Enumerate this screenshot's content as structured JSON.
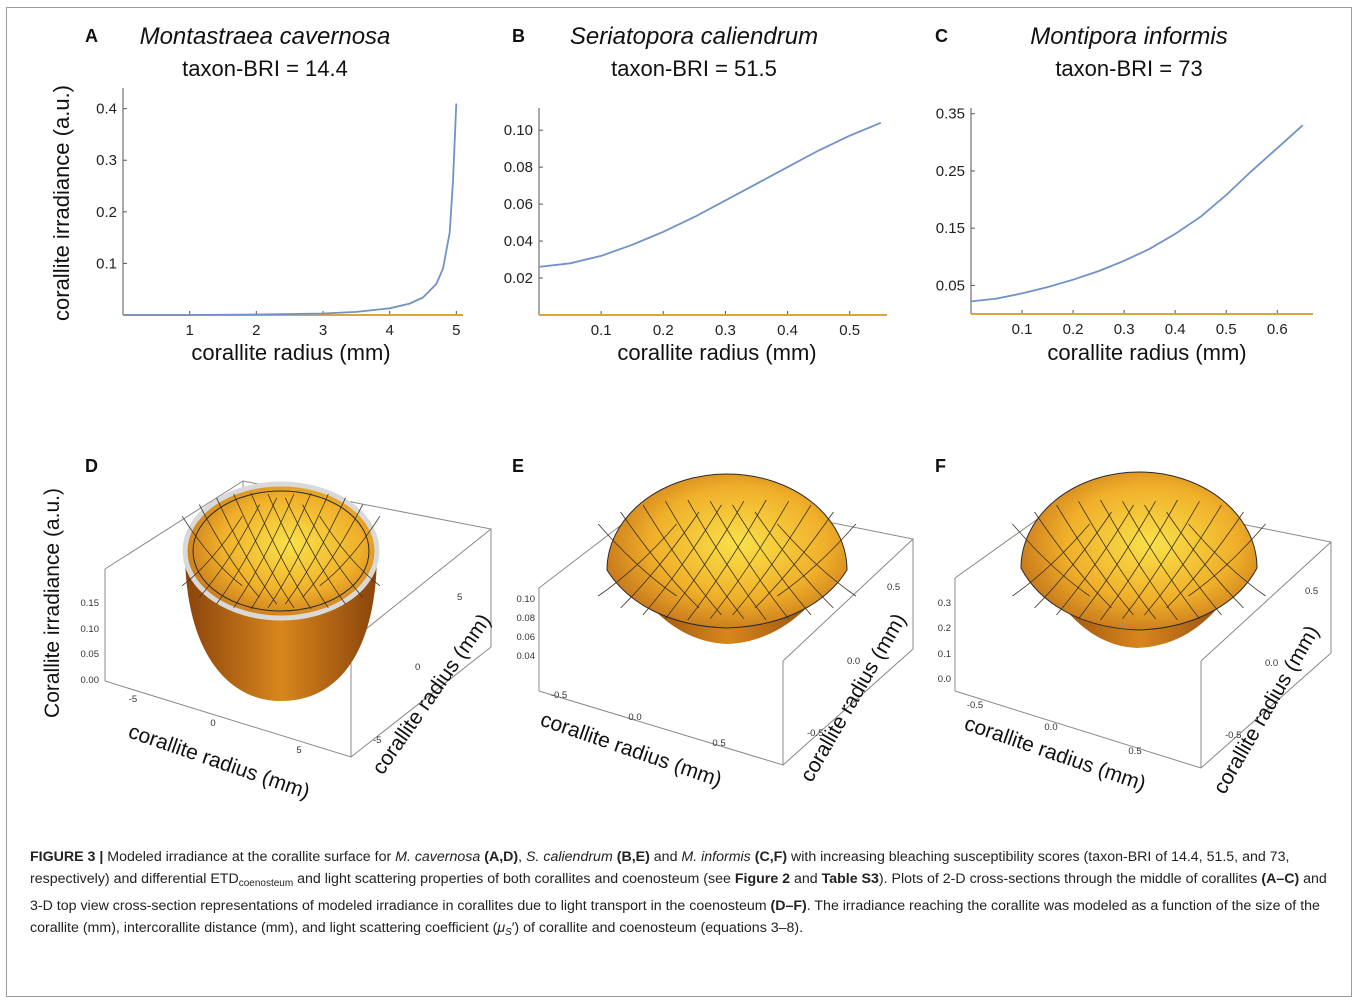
{
  "figure": {
    "panels_2d": [
      {
        "letter": "A",
        "title_species": "Montastraea cavernosa",
        "title_bri": "taxon-BRI = 14.4",
        "xlabel": "corallite radius (mm)",
        "ylabel": "corallite irradiance (a.u.)",
        "xticks": [
          "1",
          "2",
          "3",
          "4",
          "5"
        ],
        "yticks": [
          "0.1",
          "0.2",
          "0.3",
          "0.4"
        ]
      },
      {
        "letter": "B",
        "title_species": "Seriatopora caliendrum",
        "title_bri": "taxon-BRI = 51.5",
        "xlabel": "corallite radius (mm)",
        "xticks": [
          "0.1",
          "0.2",
          "0.3",
          "0.4",
          "0.5"
        ],
        "yticks": [
          "0.02",
          "0.04",
          "0.06",
          "0.08",
          "0.10"
        ]
      },
      {
        "letter": "C",
        "title_species": "Montipora informis",
        "title_bri": "taxon-BRI = 73",
        "xlabel": "corallite radius (mm)",
        "xticks": [
          "0.1",
          "0.2",
          "0.3",
          "0.4",
          "0.5",
          "0.6"
        ],
        "yticks": [
          "0.05",
          "0.15",
          "0.25",
          "0.35"
        ]
      }
    ],
    "panels_3d": [
      {
        "letter": "D",
        "zlabel": "Corallite irradiance (a.u.)",
        "xlabel": "corallite radius (mm)",
        "ylabel": "corallite radius (mm)",
        "zticks": [
          "0.15",
          "0.10",
          "0.05",
          "0.00"
        ],
        "xticks": [
          "-5",
          "0",
          "5"
        ],
        "yticks": [
          "5",
          "0",
          "-5"
        ]
      },
      {
        "letter": "E",
        "xlabel": "corallite radius (mm)",
        "ylabel": "corallite radius (mm)",
        "zticks": [
          "0.10",
          "0.08",
          "0.06",
          "0.04"
        ],
        "xticks": [
          "-0.5",
          "0.0",
          "0.5"
        ],
        "yticks": [
          "0.5",
          "0.0",
          "-0.5"
        ]
      },
      {
        "letter": "F",
        "xlabel": "corallite radius (mm)",
        "ylabel": "corallite radius (mm)",
        "zticks": [
          "0.3",
          "0.2",
          "0.1",
          "0.0"
        ],
        "xticks": [
          "-0.5",
          "0.0",
          "0.5"
        ],
        "yticks": [
          "0.5",
          "0.0",
          "-0.5"
        ]
      }
    ],
    "colors": {
      "curve": "#6f92c9",
      "baseline": "#d9a441",
      "surface_light": "#f6d23a",
      "surface_dark": "#b8620f",
      "mesh": "#3a3020"
    }
  },
  "chart_data": [
    {
      "type": "line",
      "title": "Montastraea cavernosa taxon-BRI = 14.4",
      "xlabel": "corallite radius (mm)",
      "ylabel": "corallite irradiance (a.u.)",
      "xlim": [
        0,
        5.1
      ],
      "ylim": [
        0,
        0.44
      ],
      "series": [
        {
          "x": [
            0,
            1,
            2,
            3,
            3.5,
            4,
            4.3,
            4.5,
            4.7,
            4.8,
            4.9,
            4.95,
            5.0
          ],
          "values": [
            0.0,
            0.0,
            0.001,
            0.003,
            0.006,
            0.013,
            0.022,
            0.034,
            0.06,
            0.09,
            0.16,
            0.26,
            0.41
          ]
        }
      ]
    },
    {
      "type": "line",
      "title": "Seriatopora caliendrum taxon-BRI = 51.5",
      "xlabel": "corallite radius (mm)",
      "xlim": [
        0,
        0.56
      ],
      "ylim": [
        0,
        0.112
      ],
      "series": [
        {
          "x": [
            0,
            0.05,
            0.1,
            0.15,
            0.2,
            0.25,
            0.3,
            0.35,
            0.4,
            0.45,
            0.5,
            0.55
          ],
          "values": [
            0.026,
            0.028,
            0.032,
            0.038,
            0.045,
            0.053,
            0.062,
            0.071,
            0.08,
            0.089,
            0.097,
            0.104
          ]
        }
      ]
    },
    {
      "type": "line",
      "title": "Montipora informis taxon-BRI = 73",
      "xlabel": "corallite radius (mm)",
      "xlim": [
        0,
        0.67
      ],
      "ylim": [
        0,
        0.36
      ],
      "series": [
        {
          "x": [
            0,
            0.05,
            0.1,
            0.15,
            0.2,
            0.25,
            0.3,
            0.35,
            0.4,
            0.45,
            0.5,
            0.55,
            0.6,
            0.65
          ],
          "values": [
            0.022,
            0.027,
            0.036,
            0.047,
            0.06,
            0.075,
            0.093,
            0.114,
            0.14,
            0.17,
            0.208,
            0.25,
            0.29,
            0.33
          ]
        }
      ]
    }
  ],
  "caption": {
    "label": "FIGURE 3 |",
    "t1": " Modeled irradiance at the corallite surface for ",
    "sp1": "M. cavernosa",
    "r1": "(A,D)",
    "sp2": "S. caliendrum",
    "r2": "(B,E)",
    "t2": " and ",
    "sp3": "M. informis",
    "r3": "(C,F)",
    "t3": " with increasing bleaching susceptibility scores (taxon-BRI of 14.4, 51.5, and 73, respectively) and differential ETD",
    "sub1": "coenosteum",
    "t4": " and light scattering properties of both corallites and coenosteum (see ",
    "ref1": "Figure 2",
    "t5": " and ",
    "ref2": "Table S3",
    "t6": "). Plots of 2-D cross-sections through the middle of corallites ",
    "r4": "(A–C)",
    "t7": " and 3-D top view cross-section representations of modeled irradiance in corallites due to light transport in the coenosteum ",
    "r5": "(D–F)",
    "t8": ". The irradiance reaching the corallite was modeled as a function of the size of the corallite (mm), intercorallite distance (mm), and light scattering coefficient (",
    "mu": "μ",
    "musub": "S",
    "t9": "′) of corallite and coenosteum (equations 3–8)."
  }
}
